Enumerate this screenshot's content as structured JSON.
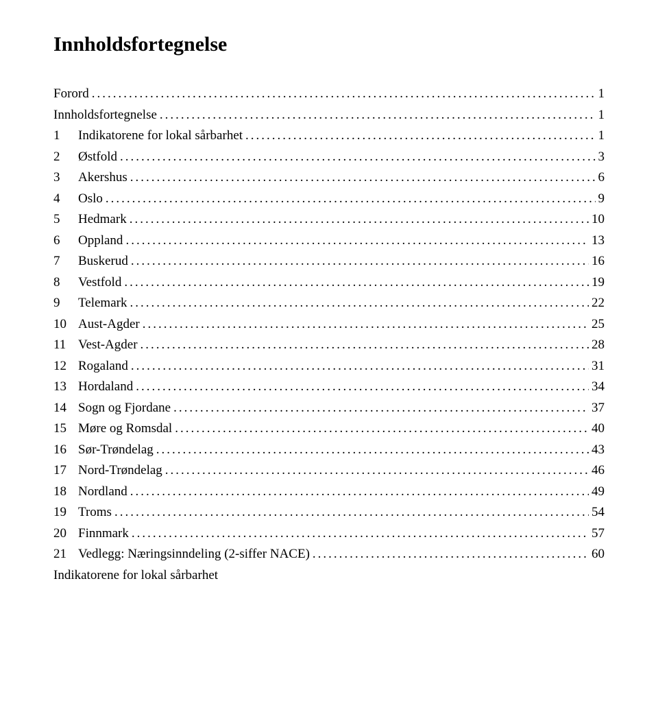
{
  "title": "Innholdsfortegnelse",
  "colors": {
    "background": "#ffffff",
    "text": "#000000"
  },
  "typography": {
    "title_fontsize": 30,
    "title_weight": "bold",
    "entry_fontsize": 19,
    "font_family": "Times New Roman"
  },
  "toc": [
    {
      "num": "",
      "label": "Forord",
      "page": "1"
    },
    {
      "num": "",
      "label": "Innholdsfortegnelse",
      "page": "1"
    },
    {
      "num": "1",
      "label": "Indikatorene for lokal sårbarhet",
      "page": "1"
    },
    {
      "num": "2",
      "label": "Østfold",
      "page": "3"
    },
    {
      "num": "3",
      "label": "Akershus",
      "page": "6"
    },
    {
      "num": "4",
      "label": "Oslo",
      "page": "9"
    },
    {
      "num": "5",
      "label": "Hedmark",
      "page": "10"
    },
    {
      "num": "6",
      "label": "Oppland",
      "page": "13"
    },
    {
      "num": "7",
      "label": "Buskerud",
      "page": "16"
    },
    {
      "num": "8",
      "label": "Vestfold",
      "page": "19"
    },
    {
      "num": "9",
      "label": "Telemark",
      "page": "22"
    },
    {
      "num": "10",
      "label": "Aust-Agder",
      "page": "25"
    },
    {
      "num": "11",
      "label": "Vest-Agder",
      "page": "28"
    },
    {
      "num": "12",
      "label": "Rogaland",
      "page": "31"
    },
    {
      "num": "13",
      "label": "Hordaland",
      "page": "34"
    },
    {
      "num": "14",
      "label": "Sogn og Fjordane",
      "page": "37"
    },
    {
      "num": "15",
      "label": "Møre og Romsdal",
      "page": "40"
    },
    {
      "num": "16",
      "label": "Sør-Trøndelag",
      "page": "43"
    },
    {
      "num": "17",
      "label": "Nord-Trøndelag",
      "page": "46"
    },
    {
      "num": "18",
      "label": "Nordland",
      "page": "49"
    },
    {
      "num": "19",
      "label": "Troms",
      "page": "54"
    },
    {
      "num": "20",
      "label": "Finnmark",
      "page": "57"
    },
    {
      "num": "21",
      "label": "Vedlegg: Næringsinndeling (2-siffer NACE)",
      "page": "60"
    }
  ],
  "footer_label": "Indikatorene for lokal sårbarhet"
}
